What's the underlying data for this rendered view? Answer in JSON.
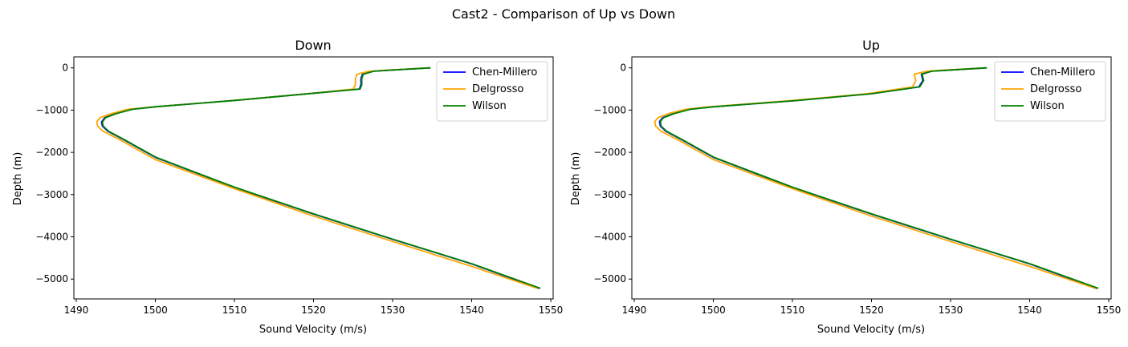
{
  "figure": {
    "suptitle": "Cast2 - Comparison of Up vs Down"
  },
  "colors": {
    "Chen-Millero": "#0000ff",
    "Delgrosso": "#ffa500",
    "Wilson": "#008000"
  },
  "chart_data": [
    {
      "type": "line",
      "title": "Down",
      "xlabel": "Sound Velocity (m/s)",
      "ylabel": "Depth (m)",
      "xlim": [
        1489.7,
        1550.3
      ],
      "ylim": [
        -5470,
        260
      ],
      "xticks": [
        1490,
        1500,
        1510,
        1520,
        1530,
        1540,
        1550
      ],
      "yticks": [
        0,
        -1000,
        -2000,
        -3000,
        -4000,
        -5000
      ],
      "grid": false,
      "legend_position": "upper right",
      "series": [
        {
          "name": "Chen-Millero",
          "x": [
            1534.7,
            1530,
            1527.5,
            1526.2,
            1526.0,
            1526.0,
            1525.8,
            1520,
            1510,
            1500,
            1497,
            1495,
            1493.6,
            1493.2,
            1493.3,
            1494.0,
            1496,
            1500,
            1510,
            1520,
            1530,
            1540,
            1548.5
          ],
          "y": [
            0,
            -50,
            -80,
            -150,
            -250,
            -400,
            -500,
            -600,
            -770,
            -920,
            -980,
            -1080,
            -1180,
            -1280,
            -1380,
            -1500,
            -1700,
            -2120,
            -2830,
            -3460,
            -4060,
            -4640,
            -5220
          ]
        },
        {
          "name": "Delgrosso",
          "x": [
            1534.6,
            1529.8,
            1527.0,
            1525.5,
            1525.3,
            1525.3,
            1525.0,
            1520,
            1510,
            1500,
            1496.5,
            1494.5,
            1493.0,
            1492.6,
            1492.7,
            1493.4,
            1495.5,
            1500,
            1510,
            1520,
            1530,
            1540,
            1548.3
          ],
          "y": [
            0,
            -50,
            -80,
            -150,
            -250,
            -400,
            -500,
            -600,
            -770,
            -920,
            -980,
            -1080,
            -1180,
            -1280,
            -1380,
            -1500,
            -1700,
            -2170,
            -2860,
            -3510,
            -4110,
            -4700,
            -5220
          ]
        },
        {
          "name": "Wilson",
          "x": [
            1534.8,
            1530.1,
            1527.6,
            1526.3,
            1526.1,
            1526.1,
            1525.9,
            1520.1,
            1510.1,
            1500.1,
            1497.1,
            1495.1,
            1493.7,
            1493.3,
            1493.4,
            1494.1,
            1496.1,
            1500.1,
            1510.1,
            1520.1,
            1530.1,
            1540.1,
            1548.7
          ],
          "y": [
            0,
            -50,
            -80,
            -150,
            -250,
            -400,
            -500,
            -600,
            -770,
            -920,
            -980,
            -1080,
            -1180,
            -1280,
            -1380,
            -1500,
            -1700,
            -2120,
            -2830,
            -3460,
            -4060,
            -4640,
            -5220
          ]
        }
      ]
    },
    {
      "type": "line",
      "title": "Up",
      "xlabel": "Sound Velocity (m/s)",
      "ylabel": "Depth (m)",
      "xlim": [
        1489.7,
        1550.3
      ],
      "ylim": [
        -5470,
        260
      ],
      "xticks": [
        1490,
        1500,
        1510,
        1520,
        1530,
        1540,
        1550
      ],
      "yticks": [
        0,
        -1000,
        -2000,
        -3000,
        -4000,
        -5000
      ],
      "grid": false,
      "legend_position": "upper right",
      "series": [
        {
          "name": "Chen-Millero",
          "x": [
            1534.5,
            1530,
            1527.5,
            1526.3,
            1526.5,
            1526.0,
            1520,
            1510,
            1500,
            1497,
            1495,
            1493.6,
            1493.2,
            1493.3,
            1494.0,
            1496,
            1500,
            1510,
            1520,
            1530,
            1540,
            1548.5
          ],
          "y": [
            0,
            -50,
            -80,
            -150,
            -300,
            -450,
            -610,
            -780,
            -920,
            -980,
            -1080,
            -1180,
            -1270,
            -1380,
            -1500,
            -1700,
            -2120,
            -2830,
            -3460,
            -4060,
            -4640,
            -5220
          ]
        },
        {
          "name": "Delgrosso",
          "x": [
            1534.4,
            1529.5,
            1527.0,
            1525.4,
            1525.6,
            1525.2,
            1519.5,
            1509.5,
            1499.6,
            1496.5,
            1494.4,
            1493.0,
            1492.6,
            1492.7,
            1493.4,
            1495.5,
            1500,
            1510,
            1520,
            1530,
            1540,
            1548.3
          ],
          "y": [
            0,
            -50,
            -80,
            -150,
            -300,
            -450,
            -610,
            -780,
            -920,
            -980,
            -1080,
            -1180,
            -1270,
            -1380,
            -1500,
            -1700,
            -2170,
            -2860,
            -3510,
            -4110,
            -4700,
            -5220
          ]
        },
        {
          "name": "Wilson",
          "x": [
            1534.6,
            1530.1,
            1527.6,
            1526.4,
            1526.6,
            1526.1,
            1520.1,
            1510.1,
            1500.1,
            1497.1,
            1495.1,
            1493.7,
            1493.3,
            1493.4,
            1494.1,
            1496.1,
            1500.1,
            1510.1,
            1520.1,
            1530.1,
            1540.1,
            1548.7
          ],
          "y": [
            0,
            -50,
            -80,
            -150,
            -300,
            -450,
            -610,
            -780,
            -920,
            -980,
            -1080,
            -1180,
            -1270,
            -1380,
            -1500,
            -1700,
            -2120,
            -2830,
            -3460,
            -4060,
            -4640,
            -5220
          ]
        }
      ]
    }
  ]
}
